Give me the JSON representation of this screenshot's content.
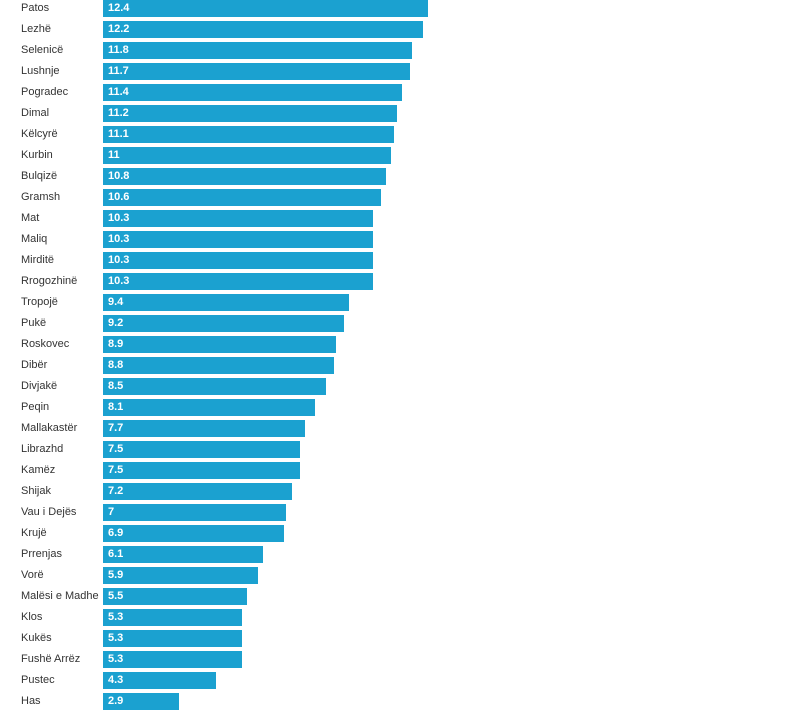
{
  "chart_data": {
    "type": "bar",
    "orientation": "horizontal",
    "title": "",
    "xlabel": "",
    "ylabel": "",
    "xlim": [
      0,
      12.4
    ],
    "grid": false,
    "color": "#1ba1d0",
    "categories": [
      "Patos",
      "Lezhë",
      "Selenicë",
      "Lushnje",
      "Pogradec",
      "Dimal",
      "Këlcyrë",
      "Kurbin",
      "Bulqizë",
      "Gramsh",
      "Mat",
      "Maliq",
      "Mirditë",
      "Rrogozhinë",
      "Tropojë",
      "Pukë",
      "Roskovec",
      "Dibër",
      "Divjakë",
      "Peqin",
      "Mallakastër",
      "Librazhd",
      "Kamëz",
      "Shijak",
      "Vau i Dejës",
      "Krujë",
      "Prrenjas",
      "Vorë",
      "Malësi e Madhe",
      "Klos",
      "Kukës",
      "Fushë Arrëz",
      "Pustec",
      "Has"
    ],
    "values": [
      12.4,
      12.2,
      11.8,
      11.7,
      11.4,
      11.2,
      11.1,
      11,
      10.8,
      10.6,
      10.3,
      10.3,
      10.3,
      10.3,
      9.4,
      9.2,
      8.9,
      8.8,
      8.5,
      8.1,
      7.7,
      7.5,
      7.5,
      7.2,
      7,
      6.9,
      6.1,
      5.9,
      5.5,
      5.3,
      5.3,
      5.3,
      4.3,
      2.9
    ]
  }
}
